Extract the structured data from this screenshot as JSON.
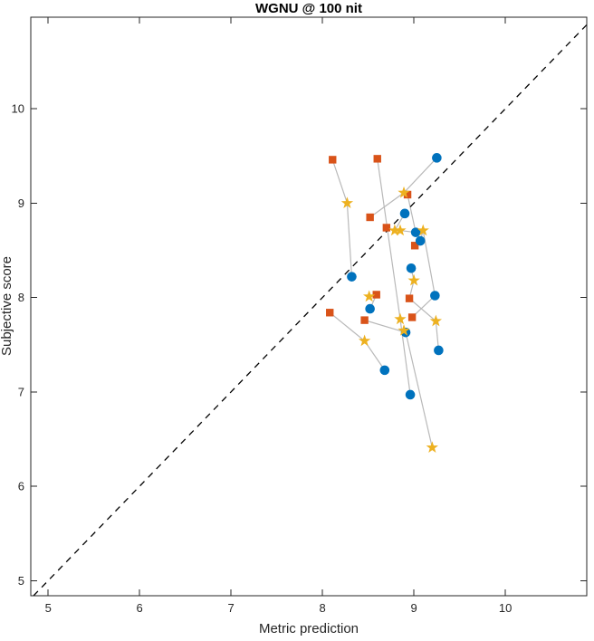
{
  "figure": {
    "background": "#ffffff",
    "axes_color": "#262626"
  },
  "chart_data": {
    "type": "scatter",
    "title": "WGNU @ 100 nit",
    "xlabel": "Metric prediction",
    "ylabel": "Subjective score",
    "xlim": [
      4.81,
      10.89
    ],
    "ylim": [
      4.84,
      10.97
    ],
    "xticks": [
      "5",
      "6",
      "7",
      "8",
      "9",
      "10"
    ],
    "xtick_values": [
      5,
      6,
      7,
      8,
      9,
      10
    ],
    "yticks": [
      "5",
      "6",
      "7",
      "8",
      "9",
      "10"
    ],
    "ytick_values": [
      5,
      6,
      7,
      8,
      9,
      10
    ],
    "grid": false,
    "legend": null,
    "identity_line": {
      "equation": "y = x",
      "style": "dashed",
      "color": "#000000"
    },
    "connector_color": "#b9b9b9",
    "series": [
      {
        "name": "square-markers",
        "marker": "square",
        "color": "#D95319",
        "points": [
          [
            8.11,
            9.46
          ],
          [
            8.6,
            9.47
          ],
          [
            8.93,
            9.09
          ],
          [
            8.52,
            8.85
          ],
          [
            8.7,
            8.74
          ],
          [
            9.01,
            8.55
          ],
          [
            8.59,
            8.03
          ],
          [
            8.95,
            7.99
          ],
          [
            8.08,
            7.84
          ],
          [
            8.46,
            7.76
          ],
          [
            8.98,
            7.79
          ]
        ]
      },
      {
        "name": "circle-markers",
        "marker": "circle",
        "color": "#0072BD",
        "points": [
          [
            9.25,
            9.48
          ],
          [
            8.9,
            8.89
          ],
          [
            9.02,
            8.69
          ],
          [
            9.07,
            8.6
          ],
          [
            8.97,
            8.31
          ],
          [
            8.32,
            8.22
          ],
          [
            9.23,
            8.02
          ],
          [
            8.52,
            7.88
          ],
          [
            8.91,
            7.63
          ],
          [
            9.27,
            7.44
          ],
          [
            8.68,
            7.23
          ],
          [
            8.96,
            6.97
          ]
        ]
      },
      {
        "name": "star-markers",
        "marker": "pentagram",
        "color": "#EDB120",
        "points": [
          [
            8.89,
            9.11
          ],
          [
            8.27,
            9.0
          ],
          [
            8.79,
            8.71
          ],
          [
            8.85,
            8.71
          ],
          [
            9.1,
            8.71
          ],
          [
            9.0,
            8.18
          ],
          [
            8.51,
            8.01
          ],
          [
            8.85,
            7.77
          ],
          [
            9.24,
            7.75
          ],
          [
            8.89,
            7.65
          ],
          [
            8.46,
            7.54
          ],
          [
            9.2,
            6.41
          ]
        ]
      }
    ],
    "connections": [
      [
        [
          8.11,
          9.46
        ],
        [
          8.27,
          9.0
        ],
        [
          8.32,
          8.22
        ]
      ],
      [
        [
          8.6,
          9.47
        ],
        [
          8.85,
          7.77
        ],
        [
          8.96,
          6.97
        ]
      ],
      [
        [
          9.25,
          9.48
        ],
        [
          8.89,
          9.11
        ],
        [
          8.52,
          8.85
        ]
      ],
      [
        [
          8.7,
          8.74
        ],
        [
          8.79,
          8.71
        ],
        [
          8.9,
          8.89
        ]
      ],
      [
        [
          8.93,
          9.09
        ],
        [
          9.02,
          8.69
        ],
        [
          8.85,
          8.71
        ]
      ],
      [
        [
          9.1,
          8.71
        ],
        [
          9.07,
          8.6
        ],
        [
          9.01,
          8.55
        ]
      ],
      [
        [
          8.97,
          8.31
        ],
        [
          9.0,
          8.18
        ],
        [
          8.95,
          7.99
        ]
      ],
      [
        [
          8.98,
          7.79
        ],
        [
          9.23,
          8.02
        ],
        [
          9.1,
          8.71
        ]
      ],
      [
        [
          8.51,
          8.01
        ],
        [
          8.59,
          8.03
        ],
        [
          8.52,
          7.88
        ]
      ],
      [
        [
          8.46,
          7.76
        ],
        [
          8.91,
          7.63
        ]
      ],
      [
        [
          8.08,
          7.84
        ],
        [
          8.46,
          7.54
        ],
        [
          8.68,
          7.23
        ]
      ],
      [
        [
          8.95,
          7.99
        ],
        [
          9.24,
          7.75
        ],
        [
          9.27,
          7.44
        ]
      ],
      [
        [
          8.91,
          7.63
        ],
        [
          9.2,
          6.41
        ]
      ]
    ]
  }
}
